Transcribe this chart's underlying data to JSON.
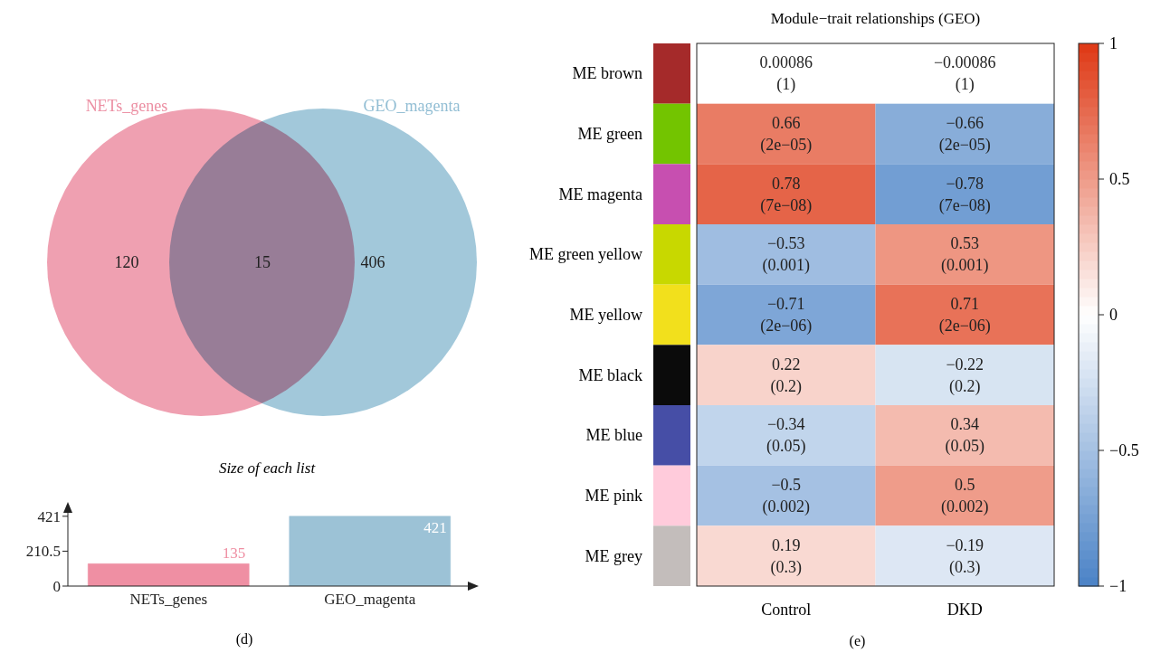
{
  "chart_data": [
    {
      "type": "other",
      "categories": [
        "NETs_genes",
        "GEO_magenta"
      ],
      "colors": [
        "#ec8fa3",
        "#92bed4"
      ],
      "annotations": [
        "120",
        "15",
        "406"
      ]
    },
    {
      "type": "bar",
      "title": "Size of each list",
      "categories": [
        "NETs_genes",
        "GEO_magenta"
      ],
      "values": [
        135,
        421
      ],
      "colors": [
        "#ef8fa3",
        "#9cc2d6"
      ],
      "ylim": [
        0,
        480
      ],
      "yticks": [
        0,
        210.5,
        421
      ],
      "data_labels": true,
      "annotations": [
        "(d)"
      ]
    },
    {
      "type": "heatmap",
      "title": "Module−trait relationships (GEO)",
      "categories": [
        "Control",
        "DKD"
      ],
      "y_categories": [
        "ME brown",
        "ME green",
        "ME magenta",
        "ME green yellow",
        "ME yellow",
        "ME black",
        "ME blue",
        "ME pink",
        "ME grey"
      ],
      "cells": [
        [
          0.00086,
          -0.00086
        ],
        [
          0.66,
          -0.66
        ],
        [
          0.78,
          -0.78
        ],
        [
          -0.53,
          0.53
        ],
        [
          -0.71,
          0.71
        ],
        [
          0.22,
          -0.22
        ],
        [
          -0.34,
          0.34
        ],
        [
          -0.5,
          0.5
        ],
        [
          0.19,
          -0.19
        ]
      ],
      "cell_labels": [
        [
          "0.00086\n(1)",
          "−0.00086\n(1)"
        ],
        [
          "0.66\n(2e−05)",
          "−0.66\n(2e−05)"
        ],
        [
          "0.78\n(7e−08)",
          "−0.78\n(7e−08)"
        ],
        [
          "−0.53\n(0.001)",
          "0.53\n(0.001)"
        ],
        [
          "−0.71\n(2e−06)",
          "0.71\n(2e−06)"
        ],
        [
          "0.22\n(0.2)",
          "−0.22\n(0.2)"
        ],
        [
          "−0.34\n(0.05)",
          "0.34\n(0.05)"
        ],
        [
          "−0.5\n(0.002)",
          "0.5\n(0.002)"
        ],
        [
          "0.19\n(0.3)",
          "−0.19\n(0.3)"
        ]
      ],
      "clim": [
        -1,
        1
      ],
      "cticks": [
        {
          "value": -1,
          "label": "−1"
        },
        {
          "value": -0.5,
          "label": "−0.5"
        },
        0,
        0.5,
        1
      ],
      "annotations": [
        "(e)"
      ]
    }
  ]
}
